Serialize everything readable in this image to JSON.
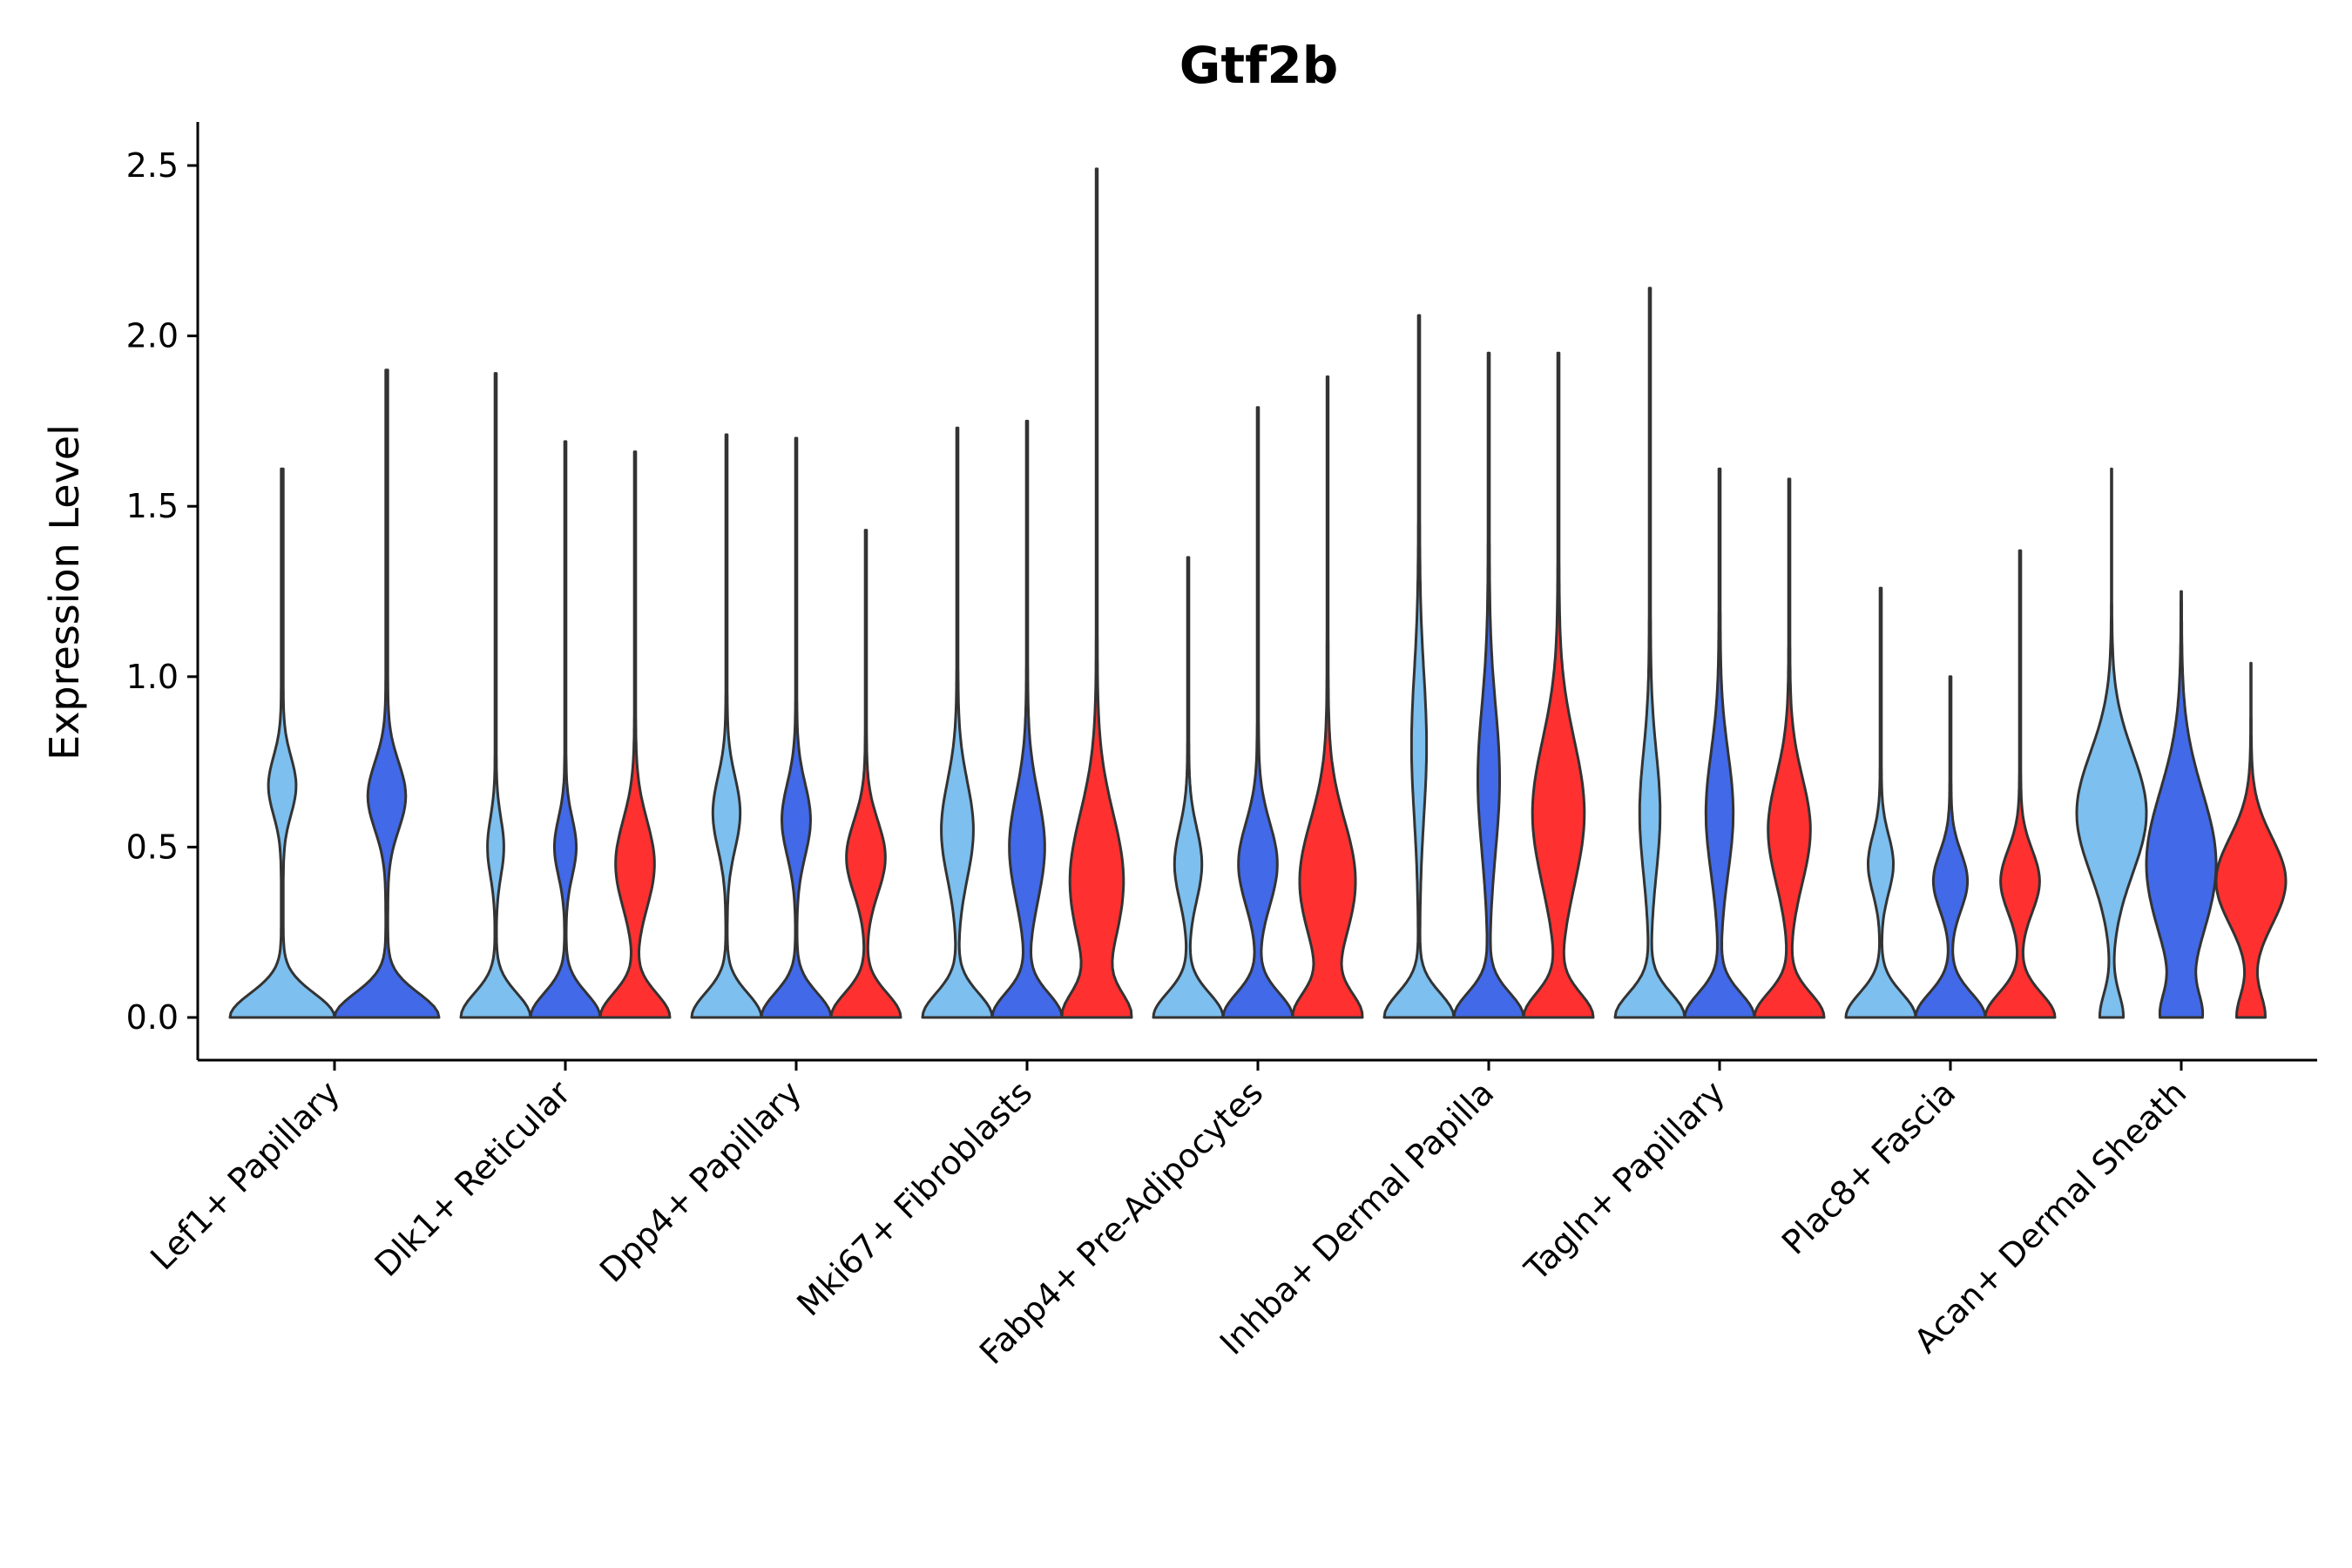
{
  "chart_data": {
    "type": "violin",
    "title": "Gtf2b",
    "xlabel": "",
    "ylabel": "Expression Level",
    "ylim": [
      -0.13,
      2.62
    ],
    "yticks": [
      "0.0",
      "0.5",
      "1.0",
      "1.5",
      "2.0",
      "2.5"
    ],
    "ytick_values": [
      0,
      0.5,
      1.0,
      1.5,
      2.0,
      2.5
    ],
    "grid": false,
    "legend": "none",
    "conditions": [
      {
        "name": "condition-1",
        "color": "#7DBFEE"
      },
      {
        "name": "condition-2",
        "color": "#4169E8"
      },
      {
        "name": "condition-3",
        "color": "#FF3030"
      }
    ],
    "categories": [
      {
        "label": "Lef1+ Papillary",
        "violins": [
          {
            "condition": 0,
            "max": 1.61,
            "mode": 0.68,
            "mode_density": 0.25,
            "mode_spread": 0.12
          },
          {
            "condition": 1,
            "max": 1.9,
            "mode": 0.65,
            "mode_density": 0.35,
            "mode_spread": 0.14
          }
        ]
      },
      {
        "label": "Dlk1+ Reticular",
        "violins": [
          {
            "condition": 0,
            "max": 1.89,
            "mode": 0.5,
            "mode_density": 0.22,
            "mode_spread": 0.12
          },
          {
            "condition": 1,
            "max": 1.69,
            "mode": 0.5,
            "mode_density": 0.3,
            "mode_spread": 0.12
          },
          {
            "condition": 2,
            "max": 1.66,
            "mode": 0.45,
            "mode_density": 0.55,
            "mode_spread": 0.18
          }
        ]
      },
      {
        "label": "Dpp4+ Papillary",
        "violins": [
          {
            "condition": 0,
            "max": 1.71,
            "mode": 0.6,
            "mode_density": 0.38,
            "mode_spread": 0.15
          },
          {
            "condition": 1,
            "max": 1.7,
            "mode": 0.58,
            "mode_density": 0.4,
            "mode_spread": 0.15
          },
          {
            "condition": 2,
            "max": 1.43,
            "mode": 0.47,
            "mode_density": 0.55,
            "mode_spread": 0.15
          }
        ]
      },
      {
        "label": "Mki67+ Fibroblasts",
        "violins": [
          {
            "condition": 0,
            "max": 1.73,
            "mode": 0.55,
            "mode_density": 0.45,
            "mode_spread": 0.2
          },
          {
            "condition": 1,
            "max": 1.75,
            "mode": 0.5,
            "mode_density": 0.5,
            "mode_spread": 0.22
          },
          {
            "condition": 2,
            "max": 2.49,
            "mode": 0.4,
            "mode_density": 0.85,
            "mode_spread": 0.28
          }
        ]
      },
      {
        "label": "Fabp4+ Pre-Adipocytes",
        "violins": [
          {
            "condition": 0,
            "max": 1.35,
            "mode": 0.45,
            "mode_density": 0.38,
            "mode_spread": 0.15
          },
          {
            "condition": 1,
            "max": 1.79,
            "mode": 0.45,
            "mode_density": 0.55,
            "mode_spread": 0.17
          },
          {
            "condition": 2,
            "max": 1.88,
            "mode": 0.4,
            "mode_density": 0.85,
            "mode_spread": 0.25
          }
        ]
      },
      {
        "label": "Inhba+ Dermal Papilla",
        "violins": [
          {
            "condition": 0,
            "max": 2.06,
            "mode": 0.8,
            "mode_density": 0.2,
            "mode_spread": 0.3
          },
          {
            "condition": 1,
            "max": 1.95,
            "mode": 0.7,
            "mode_density": 0.3,
            "mode_spread": 0.3
          },
          {
            "condition": 2,
            "max": 1.95,
            "mode": 0.6,
            "mode_density": 0.75,
            "mode_spread": 0.3
          }
        ]
      },
      {
        "label": "Tagln+ Papillary",
        "violins": [
          {
            "condition": 0,
            "max": 2.14,
            "mode": 0.6,
            "mode_density": 0.28,
            "mode_spread": 0.25
          },
          {
            "condition": 1,
            "max": 1.61,
            "mode": 0.6,
            "mode_density": 0.38,
            "mode_spread": 0.25
          },
          {
            "condition": 2,
            "max": 1.58,
            "mode": 0.55,
            "mode_density": 0.6,
            "mode_spread": 0.22
          }
        ]
      },
      {
        "label": "Plac8+ Fascia",
        "violins": [
          {
            "condition": 0,
            "max": 1.26,
            "mode": 0.45,
            "mode_density": 0.35,
            "mode_spread": 0.12
          },
          {
            "condition": 1,
            "max": 1.0,
            "mode": 0.4,
            "mode_density": 0.48,
            "mode_spread": 0.12
          },
          {
            "condition": 2,
            "max": 1.37,
            "mode": 0.4,
            "mode_density": 0.55,
            "mode_spread": 0.13
          }
        ]
      },
      {
        "label": "Acan+ Dermal Sheath",
        "violins": [
          {
            "condition": 0,
            "max": 1.61,
            "mode": 0.6,
            "mode_density": 3.0,
            "mode_spread": 0.25
          },
          {
            "condition": 1,
            "max": 1.25,
            "mode": 0.45,
            "mode_density": 2.0,
            "mode_spread": 0.3
          },
          {
            "condition": 2,
            "max": 1.04,
            "mode": 0.4,
            "mode_density": 2.5,
            "mode_spread": 0.18
          }
        ]
      }
    ]
  }
}
